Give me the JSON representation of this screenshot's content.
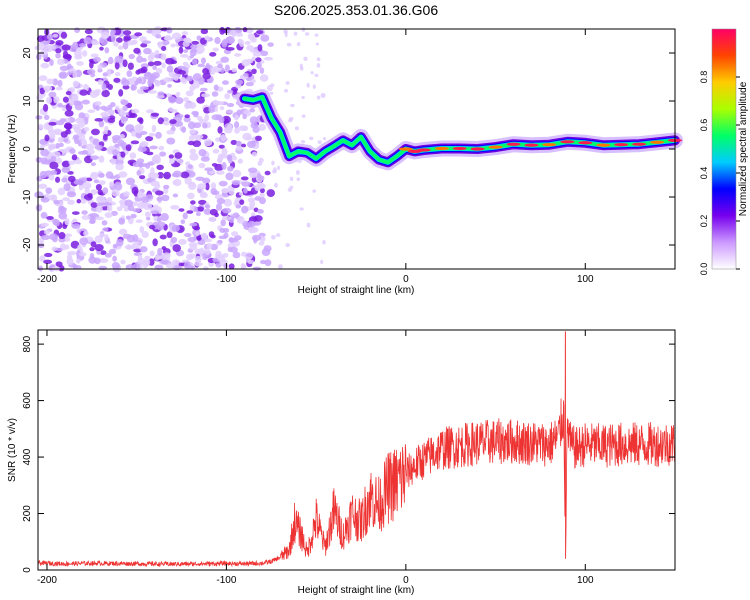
{
  "figure_title": "S206.2025.353.01.36.G06",
  "chart_data": [
    {
      "type": "heatmap",
      "title": "S206.2025.353.01.36.G06",
      "xlabel": "Height of straight line (km)",
      "ylabel": "Frequency (Hz)",
      "xlim": [
        -205,
        150
      ],
      "ylim": [
        -25,
        25
      ],
      "xticks": [
        -200,
        -100,
        0,
        100
      ],
      "yticks": [
        -20,
        -10,
        0,
        10,
        20
      ],
      "colorbar": {
        "label": "Normalized spectral amplitude",
        "range": [
          0,
          1
        ],
        "ticks": [
          0.0,
          0.2,
          0.4,
          0.6,
          0.8
        ],
        "colors": [
          "#ffffff",
          "#cc99ff",
          "#7700ee",
          "#0000ff",
          "#00ccff",
          "#00ff66",
          "#aaff00",
          "#ffcc00",
          "#ff4400",
          "#ff0066"
        ]
      },
      "ridge": {
        "description": "Dominant frequency ridge (amplitude ~0.5-0.95)",
        "x": [
          -90,
          -85,
          -80,
          -75,
          -70,
          -65,
          -60,
          -55,
          -50,
          -45,
          -40,
          -35,
          -30,
          -25,
          -20,
          -15,
          -10,
          -5,
          0,
          5,
          10,
          20,
          30,
          40,
          50,
          60,
          70,
          80,
          90,
          100,
          110,
          120,
          130,
          140,
          150
        ],
        "y": [
          10.5,
          10.2,
          10.8,
          6.5,
          3.5,
          -1.5,
          -0.5,
          -0.8,
          -2.0,
          -0.5,
          0.6,
          1.8,
          0.8,
          2.5,
          -0.5,
          -2.2,
          -2.8,
          -1.5,
          0.0,
          -0.5,
          -0.2,
          0.1,
          0.1,
          0.0,
          0.4,
          1.0,
          0.8,
          0.9,
          1.5,
          1.3,
          0.8,
          0.9,
          1.0,
          1.4,
          1.8
        ]
      }
    },
    {
      "type": "line",
      "xlabel": "Height of straight line (km)",
      "ylabel": "SNR (10 * v/v)",
      "xlim": [
        -205,
        150
      ],
      "ylim": [
        0,
        850
      ],
      "xticks": [
        -200,
        -100,
        0,
        100
      ],
      "yticks": [
        0,
        200,
        400,
        600,
        800
      ],
      "color": "#ee3333",
      "series": [
        {
          "name": "SNR",
          "x": [
            -205,
            -190,
            -175,
            -160,
            -145,
            -130,
            -115,
            -100,
            -90,
            -80,
            -75,
            -70,
            -65,
            -62,
            -58,
            -55,
            -50,
            -45,
            -40,
            -35,
            -30,
            -25,
            -20,
            -15,
            -10,
            -5,
            0,
            5,
            10,
            15,
            20,
            30,
            40,
            50,
            60,
            70,
            80,
            85,
            88,
            89,
            90,
            92,
            95,
            100,
            110,
            120,
            130,
            140,
            150
          ],
          "y": [
            25,
            22,
            24,
            23,
            22,
            21,
            22,
            23,
            22,
            24,
            30,
            45,
            70,
            170,
            120,
            60,
            180,
            80,
            210,
            120,
            200,
            170,
            260,
            230,
            290,
            310,
            340,
            370,
            390,
            410,
            430,
            440,
            450,
            455,
            455,
            450,
            445,
            470,
            560,
            40,
            520,
            440,
            430,
            445,
            440,
            445,
            445,
            445,
            450
          ]
        }
      ],
      "annotations": {
        "spike_max": {
          "x": 89,
          "y": 845
        },
        "spike_min": {
          "x": 89,
          "y": 40
        }
      }
    }
  ]
}
